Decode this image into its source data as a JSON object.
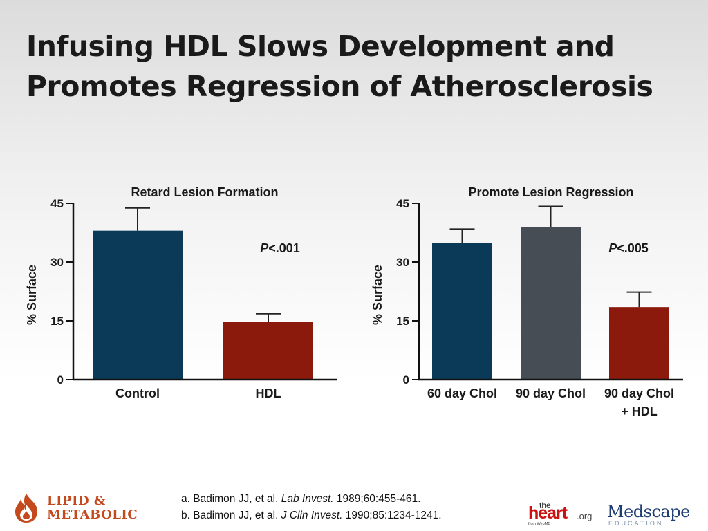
{
  "title": {
    "line1": "Infusing HDL Slows Development and",
    "line2": "Promotes Regression of Atherosclerosis"
  },
  "chart_data": [
    {
      "type": "bar",
      "title": "Retard Lesion Formation",
      "ylabel": "% Surface",
      "xlabel": "",
      "ylim": [
        0,
        45
      ],
      "yticks": [
        "0",
        "15",
        "30",
        "45"
      ],
      "categories": [
        [
          "Control"
        ],
        [
          "HDL"
        ]
      ],
      "values": [
        38,
        14.7
      ],
      "errors": [
        5.8,
        2.1
      ],
      "colors": [
        "#0a3a58",
        "#8b1a0c"
      ],
      "annotation": {
        "prefix": "P",
        "suffix": "<.001"
      },
      "grid": false
    },
    {
      "type": "bar",
      "title": "Promote Lesion Regression",
      "ylabel": "% Surface",
      "xlabel": "",
      "ylim": [
        0,
        45
      ],
      "yticks": [
        "0",
        "15",
        "30",
        "45"
      ],
      "categories": [
        [
          "60 day Chol"
        ],
        [
          "90 day Chol"
        ],
        [
          "90 day Chol",
          "+ HDL"
        ]
      ],
      "values": [
        34.8,
        39,
        18.5
      ],
      "errors": [
        3.6,
        5.2,
        3.8
      ],
      "colors": [
        "#0a3a58",
        "#474d55",
        "#8b1a0c"
      ],
      "annotation": {
        "prefix": "P",
        "suffix": "<.005"
      },
      "grid": false
    }
  ],
  "references": {
    "a_prefix": "a. Badimon JJ, et al. ",
    "a_journal": "Lab Invest.",
    "a_suffix": " 1989;60:455-461.",
    "b_prefix": "b. Badimon JJ, et al. ",
    "b_journal": "J Clin Invest.",
    "b_suffix": " 1990;85:1234-1241."
  },
  "logos": {
    "lipid_line1": "LIPID &",
    "lipid_line2": "METABOLIC",
    "heart_the": "the",
    "heart_word": "heart",
    "heart_org": ".org",
    "heart_from": "from WebMD",
    "medscape_word": "Medscape",
    "medscape_sub": "EDUCATION",
    "brand_orange": "#c44a1e",
    "heart_red": "#cc1111",
    "medscape_blue": "#1f3f74"
  }
}
